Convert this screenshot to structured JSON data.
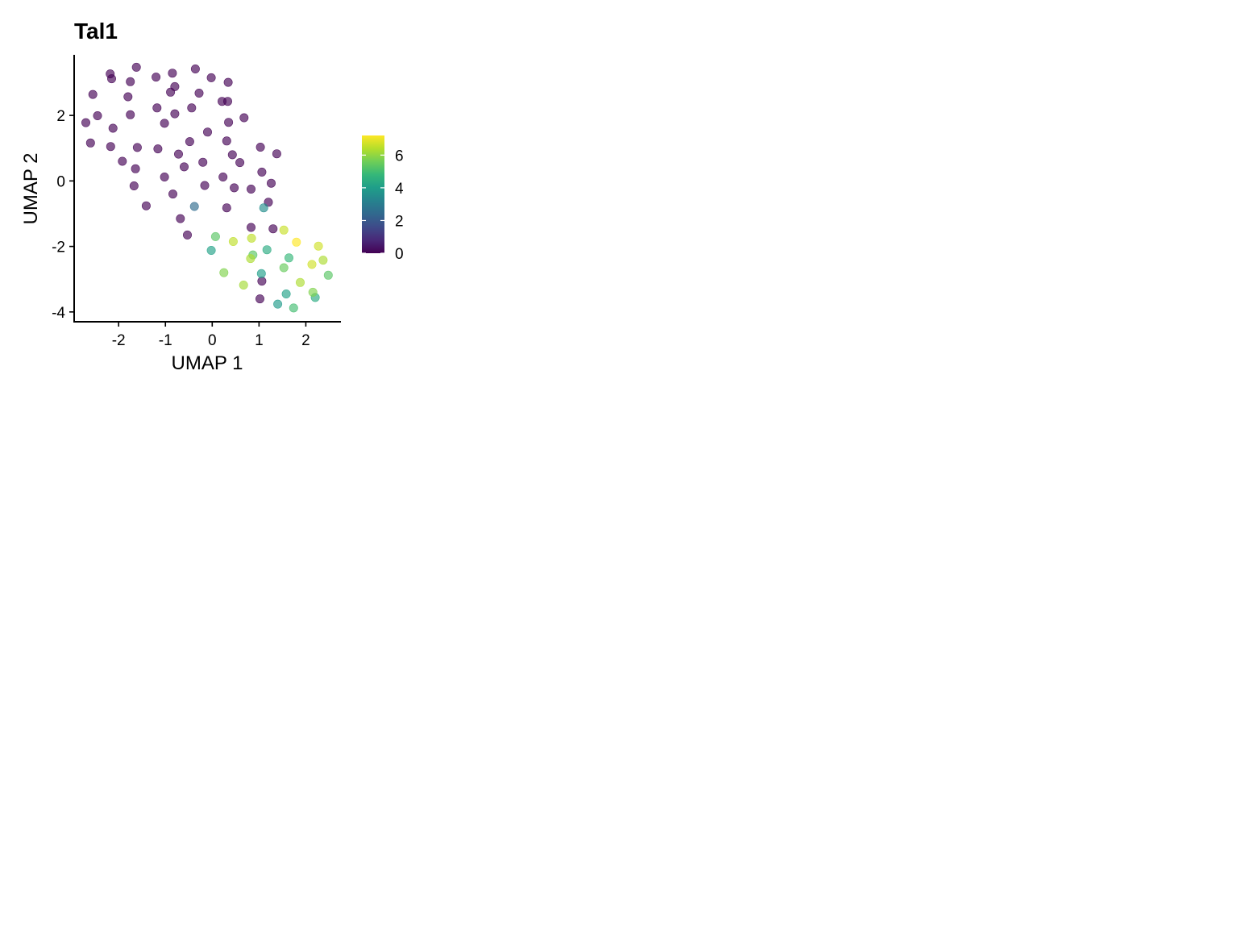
{
  "chart_data": {
    "type": "scatter",
    "title": "Tal1",
    "xlabel": "UMAP 1",
    "ylabel": "UMAP 2",
    "xlim": [
      -2.95,
      2.75
    ],
    "ylim": [
      -4.3,
      3.85
    ],
    "xticks": [
      -2,
      -1,
      0,
      1,
      2
    ],
    "xtick_labels": [
      "-2",
      "-1",
      "0",
      "1",
      "2"
    ],
    "yticks": [
      -4,
      -2,
      0,
      2
    ],
    "ytick_labels": [
      "-4",
      "-2",
      "0",
      "2"
    ],
    "grid": false,
    "legend_position": "right",
    "colorscale": {
      "name": "viridis",
      "min": 0,
      "max": 7.2,
      "ticks": [
        0,
        2,
        4,
        6
      ],
      "tick_labels": [
        "0",
        "2",
        "4",
        "6"
      ],
      "colors": [
        "#440154",
        "#482878",
        "#3e4a89",
        "#31688e",
        "#26828e",
        "#1f9e89",
        "#35b779",
        "#6ece58",
        "#b5de2b",
        "#fde725"
      ]
    },
    "points": [
      {
        "x": -2.18,
        "y": 3.27,
        "value": 0
      },
      {
        "x": -2.15,
        "y": 3.12,
        "value": 0
      },
      {
        "x": -1.62,
        "y": 3.47,
        "value": 0
      },
      {
        "x": -1.2,
        "y": 3.17,
        "value": 0
      },
      {
        "x": -0.85,
        "y": 3.29,
        "value": 0
      },
      {
        "x": -0.36,
        "y": 3.42,
        "value": 0
      },
      {
        "x": -0.02,
        "y": 3.15,
        "value": 0
      },
      {
        "x": 0.34,
        "y": 3.01,
        "value": 0
      },
      {
        "x": -2.55,
        "y": 2.64,
        "value": 0
      },
      {
        "x": -1.75,
        "y": 3.03,
        "value": 0
      },
      {
        "x": -0.8,
        "y": 2.88,
        "value": 0
      },
      {
        "x": -0.89,
        "y": 2.71,
        "value": 0
      },
      {
        "x": -0.28,
        "y": 2.68,
        "value": 0
      },
      {
        "x": -1.8,
        "y": 2.57,
        "value": 0
      },
      {
        "x": 0.21,
        "y": 2.43,
        "value": 0
      },
      {
        "x": 0.33,
        "y": 2.43,
        "value": 0
      },
      {
        "x": -1.18,
        "y": 2.23,
        "value": 0
      },
      {
        "x": -0.44,
        "y": 2.23,
        "value": 0
      },
      {
        "x": -2.45,
        "y": 1.99,
        "value": 0
      },
      {
        "x": -1.75,
        "y": 2.02,
        "value": 0
      },
      {
        "x": -0.8,
        "y": 2.05,
        "value": 0
      },
      {
        "x": -2.7,
        "y": 1.78,
        "value": 0
      },
      {
        "x": -1.02,
        "y": 1.76,
        "value": 0
      },
      {
        "x": 0.35,
        "y": 1.79,
        "value": 0
      },
      {
        "x": 0.68,
        "y": 1.93,
        "value": 0
      },
      {
        "x": -2.12,
        "y": 1.61,
        "value": 0
      },
      {
        "x": -0.1,
        "y": 1.49,
        "value": 0
      },
      {
        "x": -2.6,
        "y": 1.16,
        "value": 0
      },
      {
        "x": -0.48,
        "y": 1.2,
        "value": 0
      },
      {
        "x": 0.31,
        "y": 1.22,
        "value": 0
      },
      {
        "x": -2.17,
        "y": 1.05,
        "value": 0
      },
      {
        "x": -1.6,
        "y": 1.02,
        "value": 0
      },
      {
        "x": -1.16,
        "y": 0.98,
        "value": 0
      },
      {
        "x": 1.03,
        "y": 1.03,
        "value": 0
      },
      {
        "x": -0.72,
        "y": 0.82,
        "value": 0
      },
      {
        "x": 0.43,
        "y": 0.8,
        "value": 0
      },
      {
        "x": 1.38,
        "y": 0.83,
        "value": 0
      },
      {
        "x": -1.92,
        "y": 0.6,
        "value": 0
      },
      {
        "x": -0.2,
        "y": 0.57,
        "value": 0
      },
      {
        "x": 0.59,
        "y": 0.56,
        "value": 0
      },
      {
        "x": -1.64,
        "y": 0.37,
        "value": 0
      },
      {
        "x": -0.6,
        "y": 0.43,
        "value": 0
      },
      {
        "x": 1.06,
        "y": 0.27,
        "value": 0
      },
      {
        "x": -1.02,
        "y": 0.12,
        "value": 0
      },
      {
        "x": 0.23,
        "y": 0.12,
        "value": 0
      },
      {
        "x": 1.26,
        "y": -0.07,
        "value": 0
      },
      {
        "x": -1.67,
        "y": -0.15,
        "value": 0
      },
      {
        "x": -0.16,
        "y": -0.14,
        "value": 0
      },
      {
        "x": 0.47,
        "y": -0.21,
        "value": 0
      },
      {
        "x": 0.83,
        "y": -0.25,
        "value": 0
      },
      {
        "x": -0.84,
        "y": -0.4,
        "value": 0
      },
      {
        "x": 1.2,
        "y": -0.65,
        "value": 0
      },
      {
        "x": -1.41,
        "y": -0.76,
        "value": 0
      },
      {
        "x": 0.31,
        "y": -0.82,
        "value": 0
      },
      {
        "x": -0.38,
        "y": -0.78,
        "value": 2.5
      },
      {
        "x": 1.1,
        "y": -0.82,
        "value": 3.5
      },
      {
        "x": -0.68,
        "y": -1.15,
        "value": 0
      },
      {
        "x": 0.83,
        "y": -1.42,
        "value": 0
      },
      {
        "x": 1.3,
        "y": -1.46,
        "value": 0
      },
      {
        "x": -0.53,
        "y": -1.65,
        "value": 0
      },
      {
        "x": 1.53,
        "y": -1.5,
        "value": 6.6
      },
      {
        "x": 0.07,
        "y": -1.7,
        "value": 5.3
      },
      {
        "x": 0.45,
        "y": -1.85,
        "value": 6.5
      },
      {
        "x": 0.84,
        "y": -1.75,
        "value": 6.5
      },
      {
        "x": 1.8,
        "y": -1.87,
        "value": 7.2
      },
      {
        "x": 2.27,
        "y": -1.99,
        "value": 6.7
      },
      {
        "x": -0.02,
        "y": -2.12,
        "value": 4.1
      },
      {
        "x": 1.17,
        "y": -2.1,
        "value": 4.4
      },
      {
        "x": 0.87,
        "y": -2.26,
        "value": 5.3
      },
      {
        "x": 0.82,
        "y": -2.37,
        "value": 6.3
      },
      {
        "x": 1.64,
        "y": -2.35,
        "value": 4.8
      },
      {
        "x": 2.37,
        "y": -2.42,
        "value": 6.3
      },
      {
        "x": 2.13,
        "y": -2.55,
        "value": 6.7
      },
      {
        "x": 1.53,
        "y": -2.65,
        "value": 5.5
      },
      {
        "x": 0.25,
        "y": -2.8,
        "value": 5.8
      },
      {
        "x": 1.05,
        "y": -2.83,
        "value": 4.0
      },
      {
        "x": 2.48,
        "y": -2.88,
        "value": 5.3
      },
      {
        "x": 1.06,
        "y": -3.06,
        "value": 0
      },
      {
        "x": 1.88,
        "y": -3.1,
        "value": 6.3
      },
      {
        "x": 0.67,
        "y": -3.18,
        "value": 6.2
      },
      {
        "x": 2.15,
        "y": -3.4,
        "value": 5.8
      },
      {
        "x": 1.58,
        "y": -3.45,
        "value": 4.1
      },
      {
        "x": 2.2,
        "y": -3.56,
        "value": 4.4
      },
      {
        "x": 1.02,
        "y": -3.6,
        "value": 0
      },
      {
        "x": 1.4,
        "y": -3.76,
        "value": 3.9
      },
      {
        "x": 1.74,
        "y": -3.88,
        "value": 5.0
      }
    ]
  }
}
